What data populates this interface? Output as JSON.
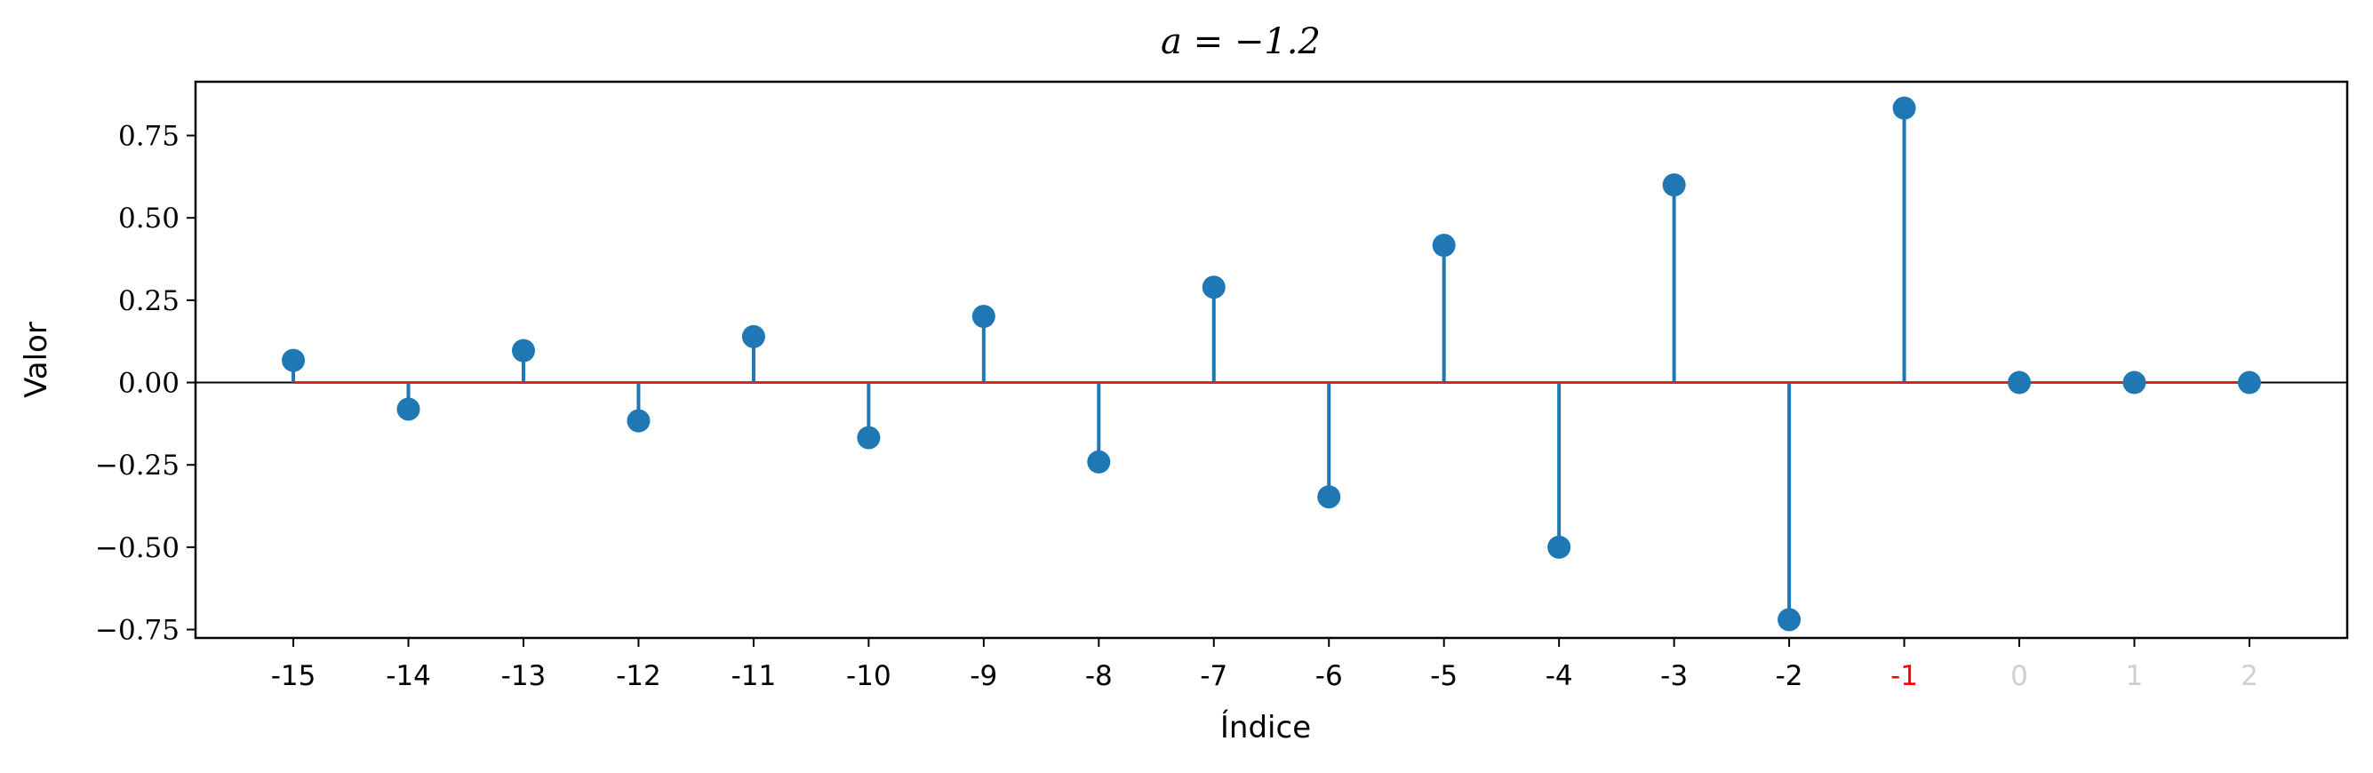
{
  "chart_data": {
    "type": "stem",
    "title": "a = −1.2",
    "xlabel": "Índice",
    "ylabel": "Valor",
    "x": [
      -15,
      -14,
      -13,
      -12,
      -11,
      -10,
      -9,
      -8,
      -7,
      -6,
      -5,
      -4,
      -3,
      -2,
      -1,
      0,
      1,
      2
    ],
    "x_tick_labels": [
      "-15",
      "-14",
      "-13",
      "-12",
      "-11",
      "-10",
      "-9",
      "-8",
      "-7",
      "-6",
      "-5",
      "-4",
      "-3",
      "-2",
      "-1",
      "0",
      "1",
      "2"
    ],
    "values": [
      0.0673,
      -0.0808,
      0.0969,
      -0.1163,
      0.1395,
      -0.1674,
      0.2009,
      -0.2411,
      0.2894,
      -0.3472,
      0.4167,
      -0.5,
      0.6,
      -0.72,
      0.8333,
      0,
      0,
      0
    ],
    "y_ticks": [
      -0.75,
      -0.5,
      -0.25,
      0.0,
      0.25,
      0.5,
      0.75
    ],
    "y_tick_labels": [
      "−0.75",
      "−0.50",
      "−0.25",
      "0.00",
      "0.25",
      "0.50",
      "0.75"
    ],
    "xlim": [
      -15.85,
      2.85
    ],
    "ylim": [
      -0.7755,
      0.9133
    ],
    "highlight_x": -1,
    "grid": false,
    "colors": {
      "stem": "#1f77b4",
      "baseline": "#d62728",
      "zero_axis": "#000000",
      "tick_default": "#000000",
      "tick_highlight": "#ff0000",
      "tick_muted": "#d0d0d0"
    }
  }
}
